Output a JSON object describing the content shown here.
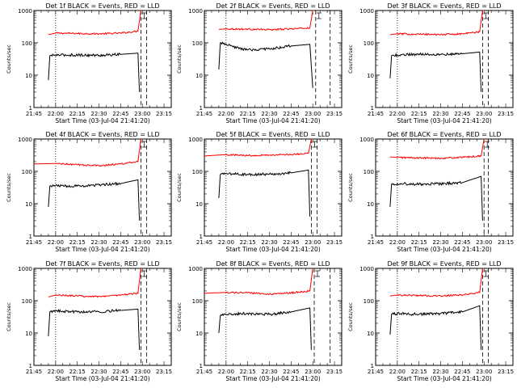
{
  "chart_data": {
    "type": "line",
    "x_unit": "time (HH:MM) on 03-Jul-04",
    "xlim": [
      "21:45",
      "23:20"
    ],
    "xtick_labels": [
      "21:45",
      "22:00",
      "22:15",
      "22:30",
      "22:45",
      "23:00",
      "23:15"
    ],
    "ylim": [
      1,
      1000
    ],
    "y_scale": "log",
    "ytick_labels": [
      "1",
      "10",
      "100",
      "1000"
    ],
    "ylabel": "Counts/sec",
    "xlabel": "Start Time (03-Jul-04 21:41:20)",
    "colors": {
      "events": "#000000",
      "lld": "#ff0000"
    },
    "panels": [
      {
        "title": "Det 1f BLACK = Events, RED = LLD",
        "xlabel": "Start Time (03-Jul-04 21:41:20)",
        "dotted_line": "22:00",
        "dashed_lines": [
          "22:59",
          "23:03"
        ],
        "series": [
          {
            "name": "LLD",
            "color": "#ff0000",
            "x": [
              "21:55",
              "22:00",
              "22:15",
              "22:30",
              "22:45",
              "22:57",
              "22:59",
              "23:00"
            ],
            "y": [
              180,
              200,
              195,
              190,
              200,
              230,
              1000,
              1000
            ]
          },
          {
            "name": "Events",
            "color": "#000000",
            "x": [
              "21:55",
              "21:56",
              "22:00",
              "22:15",
              "22:30",
              "22:45",
              "22:57",
              "22:58"
            ],
            "y": [
              7,
              40,
              42,
              42,
              41,
              44,
              48,
              3
            ]
          }
        ]
      },
      {
        "title": "Det 2f BLACK = Events, RED = LLD",
        "xlabel": "Start Time (03-Jul-04 21:41:20)",
        "dotted_line": "22:00",
        "dashed_lines": [
          "23:02",
          "23:12"
        ],
        "series": [
          {
            "name": "LLD",
            "color": "#ff0000",
            "x": [
              "21:55",
              "22:00",
              "22:15",
              "22:30",
              "22:45",
              "22:58",
              "23:00",
              "23:01"
            ],
            "y": [
              260,
              270,
              265,
              255,
              270,
              290,
              1000,
              1000
            ]
          },
          {
            "name": "Events",
            "color": "#000000",
            "x": [
              "21:55",
              "21:56",
              "22:05",
              "22:15",
              "22:30",
              "22:45",
              "22:58",
              "23:00"
            ],
            "y": [
              15,
              100,
              75,
              60,
              65,
              80,
              90,
              4
            ]
          }
        ]
      },
      {
        "title": "Det 3f BLACK = Events, RED = LLD",
        "xlabel": "Start Time (03-Jul-04 21:41:20)",
        "dotted_line": "22:00",
        "dashed_lines": [
          "22:59",
          "23:03"
        ],
        "series": [
          {
            "name": "LLD",
            "color": "#ff0000",
            "x": [
              "21:55",
              "22:00",
              "22:15",
              "22:30",
              "22:45",
              "22:57",
              "22:59",
              "23:00"
            ],
            "y": [
              180,
              190,
              185,
              180,
              190,
              220,
              1000,
              1000
            ]
          },
          {
            "name": "Events",
            "color": "#000000",
            "x": [
              "21:55",
              "21:56",
              "22:00",
              "22:15",
              "22:30",
              "22:45",
              "22:57",
              "22:58"
            ],
            "y": [
              8,
              40,
              42,
              45,
              44,
              46,
              52,
              3
            ]
          }
        ]
      },
      {
        "title": "Det 4f BLACK = Events, RED = LLD",
        "xlabel": "Start Time (03-Jul-04 21:41:20)",
        "dotted_line": "22:00",
        "dashed_lines": [
          "22:59",
          "23:03"
        ],
        "series": [
          {
            "name": "LLD",
            "color": "#ff0000",
            "x": [
              "21:45",
              "22:00",
              "22:15",
              "22:30",
              "22:45",
              "22:57",
              "22:59",
              "23:00"
            ],
            "y": [
              170,
              175,
              160,
              150,
              170,
              200,
              1000,
              1000
            ]
          },
          {
            "name": "Events",
            "color": "#000000",
            "x": [
              "21:55",
              "21:56",
              "22:00",
              "22:15",
              "22:30",
              "22:45",
              "22:57",
              "22:58"
            ],
            "y": [
              8,
              35,
              36,
              35,
              38,
              42,
              55,
              3
            ]
          }
        ]
      },
      {
        "title": "Det 5f BLACK = Events, RED = LLD",
        "xlabel": "Start Time (03-Jul-04 21:41:20)",
        "dotted_line": "22:00",
        "dashed_lines": [
          "22:59",
          "23:03"
        ],
        "series": [
          {
            "name": "LLD",
            "color": "#ff0000",
            "x": [
              "21:45",
              "22:00",
              "22:15",
              "22:30",
              "22:45",
              "22:57",
              "22:59",
              "23:00"
            ],
            "y": [
              300,
              330,
              310,
              320,
              330,
              360,
              1000,
              1000
            ]
          },
          {
            "name": "Events",
            "color": "#000000",
            "x": [
              "21:55",
              "21:56",
              "22:00",
              "22:15",
              "22:30",
              "22:45",
              "22:57",
              "22:58"
            ],
            "y": [
              15,
              80,
              85,
              80,
              82,
              90,
              110,
              4
            ]
          }
        ]
      },
      {
        "title": "Det 6f BLACK = Events, RED = LLD",
        "xlabel": "Start Time (03-Jul-04 21:41:20)",
        "dotted_line": "22:00",
        "dashed_lines": [
          "23:00",
          "23:03"
        ],
        "series": [
          {
            "name": "LLD",
            "color": "#ff0000",
            "x": [
              "21:55",
              "22:00",
              "22:15",
              "22:30",
              "22:45",
              "22:58",
              "23:00",
              "23:01"
            ],
            "y": [
              280,
              270,
              260,
              255,
              270,
              300,
              1000,
              1000
            ]
          },
          {
            "name": "Events",
            "color": "#000000",
            "x": [
              "21:55",
              "21:56",
              "22:00",
              "22:15",
              "22:30",
              "22:45",
              "22:58",
              "22:59"
            ],
            "y": [
              8,
              40,
              42,
              40,
              41,
              45,
              70,
              3
            ]
          }
        ]
      },
      {
        "title": "Det 7f BLACK = Events, RED = LLD",
        "xlabel": "Start Time (03-Jul-04 21:41:20)",
        "dotted_line": "22:00",
        "dashed_lines": [
          "22:59",
          "23:03"
        ],
        "series": [
          {
            "name": "LLD",
            "color": "#ff0000",
            "x": [
              "21:55",
              "22:00",
              "22:15",
              "22:30",
              "22:45",
              "22:57",
              "22:59",
              "23:00"
            ],
            "y": [
              130,
              150,
              140,
              135,
              150,
              170,
              1000,
              1000
            ]
          },
          {
            "name": "Events",
            "color": "#000000",
            "x": [
              "21:55",
              "21:56",
              "22:00",
              "22:15",
              "22:30",
              "22:45",
              "22:57",
              "22:58"
            ],
            "y": [
              8,
              45,
              48,
              45,
              46,
              50,
              55,
              3
            ]
          }
        ]
      },
      {
        "title": "Det 8f BLACK = Events, RED = LLD",
        "xlabel": "Start Time (03-Jul-04 21:41:20)",
        "dotted_line": "22:00",
        "dashed_lines": [
          "23:01",
          "23:12"
        ],
        "series": [
          {
            "name": "LLD",
            "color": "#ff0000",
            "x": [
              "21:45",
              "22:00",
              "22:15",
              "22:30",
              "22:45",
              "22:58",
              "23:00",
              "23:01"
            ],
            "y": [
              170,
              180,
              175,
              160,
              175,
              200,
              1000,
              1000
            ]
          },
          {
            "name": "Events",
            "color": "#000000",
            "x": [
              "21:55",
              "21:56",
              "22:00",
              "22:15",
              "22:30",
              "22:45",
              "22:58",
              "22:59"
            ],
            "y": [
              10,
              35,
              38,
              40,
              38,
              45,
              60,
              3
            ]
          }
        ]
      },
      {
        "title": "Det 9f BLACK = Events, RED = LLD",
        "xlabel": "Start Time (03-Jul-04 21:41:20)",
        "dotted_line": "22:00",
        "dashed_lines": [
          "22:59",
          "23:03"
        ],
        "series": [
          {
            "name": "LLD",
            "color": "#ff0000",
            "x": [
              "21:55",
              "22:00",
              "22:15",
              "22:30",
              "22:45",
              "22:57",
              "22:59",
              "23:00"
            ],
            "y": [
              140,
              150,
              145,
              140,
              150,
              180,
              1000,
              1000
            ]
          },
          {
            "name": "Events",
            "color": "#000000",
            "x": [
              "21:55",
              "21:56",
              "22:00",
              "22:15",
              "22:30",
              "22:45",
              "22:57",
              "22:58"
            ],
            "y": [
              9,
              38,
              40,
              38,
              40,
              45,
              70,
              3
            ]
          }
        ]
      }
    ]
  }
}
